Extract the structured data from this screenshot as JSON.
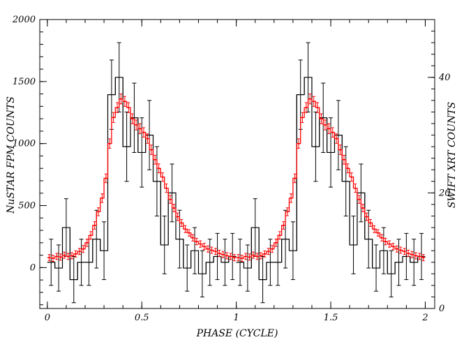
{
  "chart_data": {
    "type": "line",
    "title": "",
    "xlabel": "PHASE (CYCLE)",
    "ylabel": "NuSTAR FPM COUNTS",
    "y2label": "SWIFT XRT COUNTS",
    "xlim": [
      -0.04,
      2.05
    ],
    "ylim": [
      -330,
      2000
    ],
    "y2lim": [
      0,
      50
    ],
    "xticks": [
      0,
      0.5,
      1,
      1.5,
      2
    ],
    "xtick_labels": [
      "0",
      "0.5",
      "1",
      "1.5",
      "2"
    ],
    "yticks": [
      0,
      500,
      1000,
      1500,
      2000
    ],
    "ytick_labels": [
      "0",
      "500",
      "1000",
      "1500",
      "2000"
    ],
    "y2ticks": [
      0,
      20,
      40
    ],
    "y2tick_labels": [
      "0",
      "20",
      "40"
    ],
    "grid": false,
    "bin_width": 0.04,
    "series": [
      {
        "axis": "right",
        "color": "#000000",
        "x": [
          0.02,
          0.06,
          0.1,
          0.14,
          0.18,
          0.22,
          0.26,
          0.3,
          0.34,
          0.38,
          0.42,
          0.46,
          0.5,
          0.54,
          0.58,
          0.62,
          0.66,
          0.7,
          0.74,
          0.78,
          0.82,
          0.86,
          0.9,
          0.94,
          0.98
        ],
        "values": [
          8,
          7,
          14,
          5,
          8,
          8,
          12,
          10,
          37,
          40,
          28,
          33,
          27,
          30,
          22,
          11,
          20,
          12,
          7,
          10,
          6,
          8,
          9,
          8,
          9
        ],
        "errors": [
          4,
          4,
          5,
          4,
          4,
          4,
          5,
          5,
          6,
          6,
          6,
          6,
          6,
          6,
          6,
          5,
          5,
          5,
          4,
          4,
          4,
          4,
          4,
          4,
          4
        ]
      },
      {
        "axis": "left",
        "color": "#ff0000",
        "x": [
          0.01,
          0.03,
          0.05,
          0.07,
          0.09,
          0.11,
          0.13,
          0.15,
          0.17,
          0.19,
          0.21,
          0.23,
          0.25,
          0.27,
          0.29,
          0.31,
          0.33,
          0.35,
          0.37,
          0.39,
          0.41,
          0.43,
          0.45,
          0.47,
          0.49,
          0.51,
          0.53,
          0.55,
          0.57,
          0.59,
          0.61,
          0.63,
          0.65,
          0.67,
          0.69,
          0.71,
          0.73,
          0.75,
          0.77,
          0.79,
          0.81,
          0.83,
          0.85,
          0.87,
          0.89,
          0.91,
          0.93,
          0.95,
          0.97,
          0.99
        ],
        "values": [
          80,
          75,
          90,
          85,
          100,
          90,
          95,
          110,
          130,
          150,
          200,
          260,
          340,
          450,
          560,
          720,
          1000,
          1210,
          1290,
          1360,
          1340,
          1290,
          1200,
          1150,
          1120,
          1090,
          1040,
          950,
          870,
          800,
          730,
          640,
          550,
          480,
          410,
          360,
          310,
          280,
          240,
          210,
          190,
          170,
          150,
          140,
          130,
          115,
          105,
          95,
          90,
          80
        ],
        "errors": [
          25,
          25,
          25,
          25,
          25,
          25,
          25,
          25,
          25,
          28,
          30,
          30,
          30,
          32,
          35,
          35,
          38,
          40,
          40,
          40,
          40,
          40,
          40,
          40,
          40,
          38,
          38,
          38,
          36,
          36,
          34,
          34,
          32,
          30,
          30,
          28,
          28,
          26,
          26,
          26,
          26,
          26,
          25,
          25,
          25,
          25,
          25,
          25,
          25,
          25
        ]
      }
    ]
  }
}
